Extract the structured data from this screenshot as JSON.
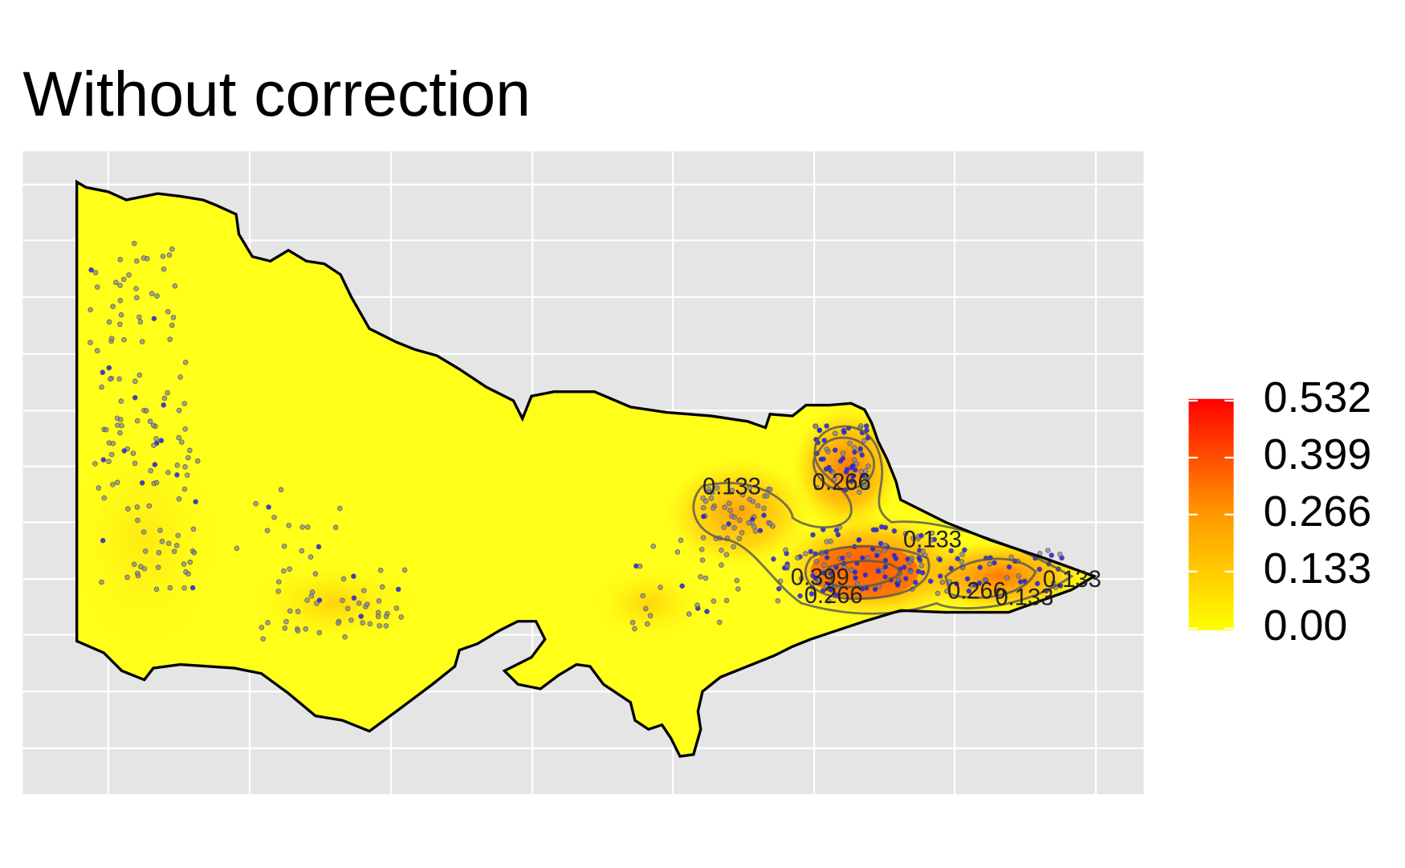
{
  "title": "Without correction",
  "legend": {
    "range": [
      0,
      0.532
    ],
    "colors": [
      "#ffff00",
      "#ff0000"
    ],
    "ticks": [
      0.532,
      0.399,
      0.266,
      0.133,
      {
        "value": 0,
        "label": "0.00"
      }
    ]
  },
  "contour_labels": [
    0.133,
    0.266,
    0.133,
    0.399,
    0.266,
    0.266,
    0.133,
    0.133
  ]
}
